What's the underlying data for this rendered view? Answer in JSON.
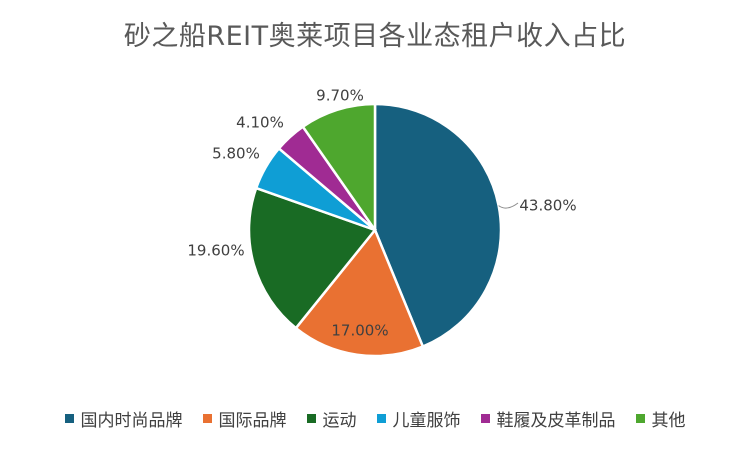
{
  "chart_data": {
    "type": "pie",
    "title": "砂之船REIT奥莱项目各业态租户收入占比",
    "categories": [
      "国内时尚品牌",
      "国际品牌",
      "运动",
      "儿童服饰",
      "鞋履及皮革制品",
      "其他"
    ],
    "values": [
      43.8,
      17.0,
      19.6,
      5.8,
      4.1,
      9.7
    ],
    "labels": [
      "43.80%",
      "17.00%",
      "19.60%",
      "5.80%",
      "4.10%",
      "9.70%"
    ],
    "colors": [
      "#16607f",
      "#e97132",
      "#196b24",
      "#0f9ed5",
      "#a02b93",
      "#4ea72e"
    ],
    "legend_position": "bottom"
  }
}
